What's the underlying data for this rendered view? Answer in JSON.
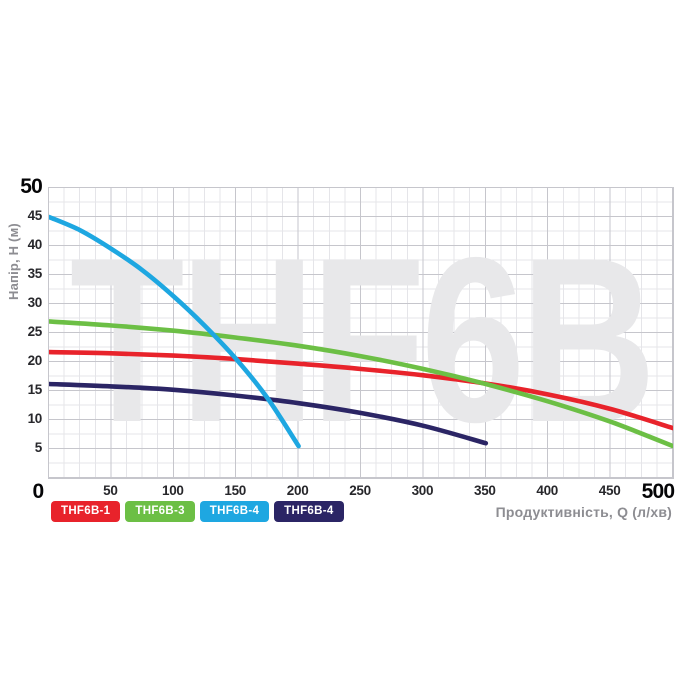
{
  "watermark": "THF6B",
  "axes": {
    "y_title": "Напір, H (м)",
    "x_title": "Продуктивність, Q (л/хв)"
  },
  "legend": {
    "items": [
      {
        "label": "THF6B-1",
        "color": "#e8232b"
      },
      {
        "label": "THF6B-3",
        "color": "#6cbf45"
      },
      {
        "label": "THF6B-4",
        "color": "#1ea7e1"
      },
      {
        "label": "THF6B-4",
        "color": "#2b2565"
      }
    ]
  },
  "chart_data": {
    "type": "line",
    "title": "THF6B",
    "xlabel": "Продуктивність, Q (л/хв)",
    "ylabel": "Напір, H (м)",
    "xlim": [
      0,
      500
    ],
    "ylim": [
      0,
      50
    ],
    "x_ticks": [
      0,
      50,
      100,
      150,
      200,
      250,
      300,
      350,
      400,
      450,
      500
    ],
    "y_ticks": [
      5,
      10,
      15,
      20,
      25,
      30,
      35,
      40,
      45,
      50
    ],
    "grid": true,
    "legend_position": "bottom-left",
    "series": [
      {
        "name": "THF6B-1",
        "color": "#e8232b",
        "points": [
          [
            0,
            21.7
          ],
          [
            50,
            21.5
          ],
          [
            100,
            21.1
          ],
          [
            150,
            20.5
          ],
          [
            200,
            19.7
          ],
          [
            250,
            18.8
          ],
          [
            300,
            17.7
          ],
          [
            350,
            16.3
          ],
          [
            400,
            14.4
          ],
          [
            450,
            11.9
          ],
          [
            500,
            8.6
          ]
        ]
      },
      {
        "name": "THF6B-3",
        "color": "#6cbf45",
        "points": [
          [
            0,
            27
          ],
          [
            50,
            26.3
          ],
          [
            100,
            25.4
          ],
          [
            150,
            24.2
          ],
          [
            200,
            22.8
          ],
          [
            250,
            21
          ],
          [
            300,
            18.8
          ],
          [
            350,
            16.2
          ],
          [
            400,
            13.2
          ],
          [
            450,
            9.7
          ],
          [
            500,
            5.5
          ]
        ]
      },
      {
        "name": "THF6B-4",
        "color": "#1ea7e1",
        "points": [
          [
            0,
            45
          ],
          [
            25,
            42.7
          ],
          [
            50,
            39.5
          ],
          [
            75,
            35.8
          ],
          [
            100,
            31.3
          ],
          [
            125,
            26.2
          ],
          [
            150,
            20.5
          ],
          [
            175,
            13.8
          ],
          [
            200,
            5.5
          ]
        ]
      },
      {
        "name": "THF6B-4",
        "color": "#2b2565",
        "points": [
          [
            0,
            16.2
          ],
          [
            50,
            15.8
          ],
          [
            100,
            15.2
          ],
          [
            150,
            14.2
          ],
          [
            200,
            12.9
          ],
          [
            250,
            11.2
          ],
          [
            300,
            9
          ],
          [
            350,
            6
          ]
        ]
      }
    ]
  }
}
